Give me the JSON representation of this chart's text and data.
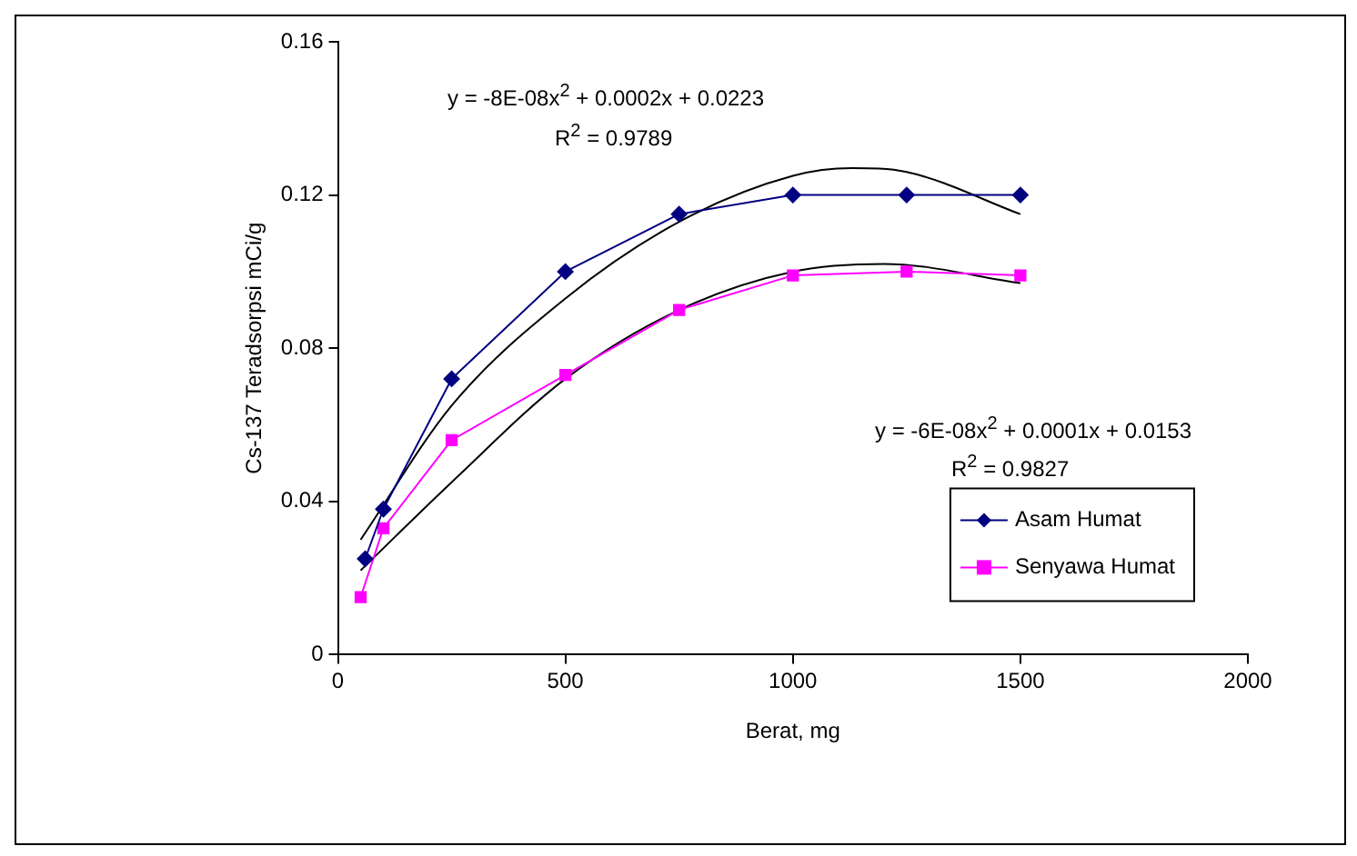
{
  "chart_data": {
    "type": "line",
    "xlabel": "Berat, mg",
    "ylabel": "Cs-137 Teradsorpsi mCi/g",
    "xlim": [
      0,
      2000
    ],
    "xticks": [
      0,
      500,
      1000,
      1500,
      2000
    ],
    "ylim": [
      0,
      0.16
    ],
    "yticks": [
      0,
      0.04,
      0.08,
      0.12,
      0.16
    ],
    "grid": false,
    "legend": "bottom right",
    "annotations": [
      "y = -8E-08x$^{2}$ + 0.0002x + 0.0223",
      "R$^{2}$ = 0.9789",
      "y = -6E-08x$^{2}$ + 0.0001x + 0.0153",
      "R$^{2}$ = 0.9827"
    ],
    "series": [
      {
        "name": "Asam Humat",
        "color": "#000080",
        "marker": "diamond",
        "x": [
          60,
          100,
          250,
          500,
          750,
          1000,
          1250,
          1500
        ],
        "values": [
          0.025,
          0.038,
          0.072,
          0.1,
          0.115,
          0.12,
          0.12,
          0.12
        ]
      },
      {
        "name": "Senyawa Humat",
        "color": "#ff00ff",
        "marker": "square",
        "x": [
          50,
          100,
          250,
          500,
          750,
          1000,
          1250,
          1500
        ],
        "values": [
          0.015,
          0.033,
          0.056,
          0.073,
          0.09,
          0.099,
          0.1,
          0.099
        ]
      },
      {
        "type": "line",
        "color": "#000000",
        "marker": "none",
        "x": [
          50,
          250,
          500,
          750,
          1000,
          1130,
          1250,
          1500
        ],
        "values": [
          0.03,
          0.065,
          0.093,
          0.113,
          0.125,
          0.127,
          0.126,
          0.115
        ]
      },
      {
        "type": "line",
        "color": "#000000",
        "marker": "none",
        "x": [
          50,
          250,
          500,
          750,
          1000,
          1200,
          1500
        ],
        "values": [
          0.022,
          0.045,
          0.072,
          0.09,
          0.1,
          0.102,
          0.097
        ]
      }
    ]
  }
}
